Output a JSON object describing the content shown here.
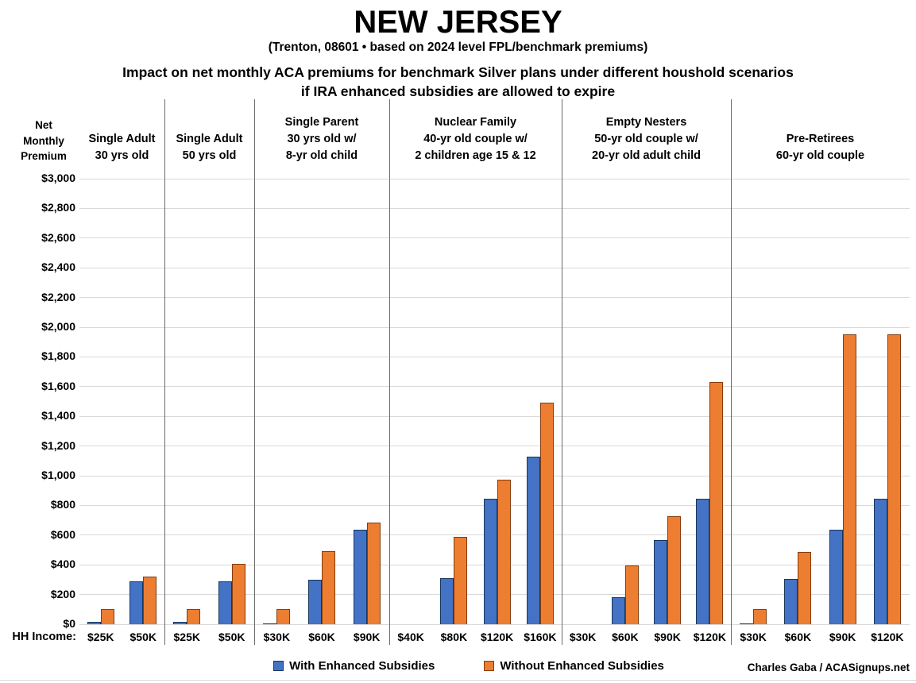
{
  "header": {
    "title": "NEW JERSEY",
    "subtitle": "(Trenton, 08601 • based on 2024 level FPL/benchmark premiums)",
    "description_line1": "Impact on net monthly ACA premiums for benchmark Silver plans under different houshold scenarios",
    "description_line2": "if IRA enhanced subsidies are allowed to expire"
  },
  "axis": {
    "y_title": "Net\nMonthly\nPremium",
    "x_title": "HH Income:"
  },
  "legend": {
    "with_label": "With Enhanced Subsidies",
    "without_label": "Without Enhanced Subsidies"
  },
  "credit": "Charles Gaba / ACASignups.net",
  "colors": {
    "with_enhanced": "#4472C4",
    "without_enhanced": "#ED7D31",
    "gridline": "#d9d9d9",
    "divider": "#6b6b6b"
  },
  "chart_data": {
    "type": "bar",
    "title": "Impact on net monthly ACA premiums for benchmark Silver plans under different houshold scenarios if IRA enhanced subsidies are allowed to expire",
    "ylabel": "Net Monthly Premium",
    "xlabel": "HH Income",
    "ylim": [
      0,
      3000
    ],
    "ytick_step": 200,
    "ytick_format": "$#,##0",
    "grid": true,
    "legend_position": "bottom",
    "series_names": [
      "With Enhanced Subsidies",
      "Without Enhanced Subsidies"
    ],
    "groups": [
      {
        "label": "Single Adult\n30 yrs old",
        "slots": [
          {
            "income": "$25K",
            "with": 15,
            "without": 100
          },
          {
            "income": "$50K",
            "with": 290,
            "without": 320
          }
        ]
      },
      {
        "label": "Single Adult\n50 yrs old",
        "slots": [
          {
            "income": "$25K",
            "with": 15,
            "without": 100
          },
          {
            "income": "$50K",
            "with": 290,
            "without": 405
          }
        ]
      },
      {
        "label": "Single Parent\n30 yrs old w/\n8-yr old child",
        "slots": [
          {
            "income": "$30K",
            "with": 5,
            "without": 100
          },
          {
            "income": "$60K",
            "with": 300,
            "without": 490
          },
          {
            "income": "$90K",
            "with": 635,
            "without": 685
          }
        ]
      },
      {
        "label": "Nuclear Family\n40-yr old couple w/\n2 children age 15 & 12",
        "slots": [
          {
            "income": "$40K",
            "with": 0,
            "without": 0
          },
          {
            "income": "$80K",
            "with": 310,
            "without": 590
          },
          {
            "income": "$120K",
            "with": 845,
            "without": 975
          },
          {
            "income": "$160K",
            "with": 1130,
            "without": 1490
          }
        ]
      },
      {
        "label": "Empty Nesters\n50-yr old couple w/\n20-yr old adult child",
        "slots": [
          {
            "income": "$30K",
            "with": 0,
            "without": 0
          },
          {
            "income": "$60K",
            "with": 180,
            "without": 395
          },
          {
            "income": "$90K",
            "with": 565,
            "without": 730
          },
          {
            "income": "$120K",
            "with": 845,
            "without": 1630
          }
        ]
      },
      {
        "label": "Pre-Retirees\n60-yr old couple",
        "slots": [
          {
            "income": "$30K",
            "with": 5,
            "without": 100
          },
          {
            "income": "$60K",
            "with": 305,
            "without": 485
          },
          {
            "income": "$90K",
            "with": 635,
            "without": 1950
          },
          {
            "income": "$120K",
            "with": 845,
            "without": 1950
          }
        ]
      }
    ]
  }
}
